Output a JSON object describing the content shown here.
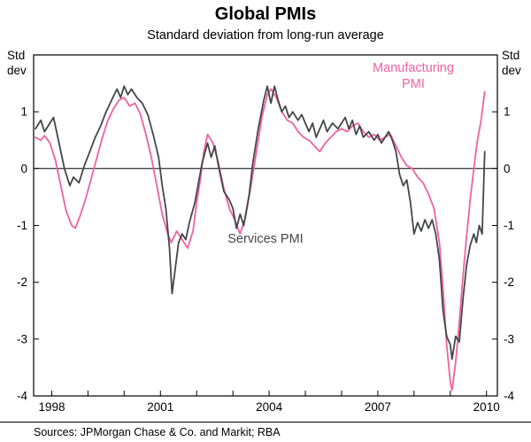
{
  "chart_data": {
    "type": "line",
    "title": "Global PMIs",
    "subtitle": "Standard deviation from long-run average",
    "unit_label_line1": "Std",
    "unit_label_line2": "dev",
    "x_domain": [
      1997.5,
      2010.3
    ],
    "y_domain": [
      -4,
      2
    ],
    "y_ticks": [
      1,
      0,
      -1,
      -2,
      -3,
      -4
    ],
    "x_minor_tick_years": [
      1998,
      1999,
      2000,
      2001,
      2002,
      2003,
      2004,
      2005,
      2006,
      2007,
      2008,
      2009,
      2010
    ],
    "x_labeled_ticks": [
      1998,
      2001,
      2004,
      2007,
      2010
    ],
    "zero_line": true,
    "grid": false,
    "legend_position": "annotated-on-chart",
    "series": [
      {
        "name": "Manufacturing PMI",
        "color": "#f0619f",
        "points": [
          [
            1997.55,
            0.55
          ],
          [
            1997.7,
            0.5
          ],
          [
            1997.8,
            0.58
          ],
          [
            1997.95,
            0.45
          ],
          [
            1998.1,
            0.15
          ],
          [
            1998.25,
            -0.3
          ],
          [
            1998.4,
            -0.75
          ],
          [
            1998.55,
            -1.0
          ],
          [
            1998.65,
            -1.05
          ],
          [
            1998.8,
            -0.8
          ],
          [
            1998.95,
            -0.5
          ],
          [
            1999.1,
            -0.15
          ],
          [
            1999.25,
            0.2
          ],
          [
            1999.4,
            0.55
          ],
          [
            1999.55,
            0.85
          ],
          [
            1999.7,
            1.05
          ],
          [
            1999.85,
            1.2
          ],
          [
            2000.0,
            1.25
          ],
          [
            2000.15,
            1.1
          ],
          [
            2000.3,
            1.15
          ],
          [
            2000.45,
            0.95
          ],
          [
            2000.6,
            0.6
          ],
          [
            2000.75,
            0.2
          ],
          [
            2000.9,
            -0.3
          ],
          [
            2001.05,
            -0.8
          ],
          [
            2001.2,
            -1.15
          ],
          [
            2001.3,
            -1.3
          ],
          [
            2001.45,
            -1.1
          ],
          [
            2001.6,
            -1.25
          ],
          [
            2001.75,
            -1.4
          ],
          [
            2001.9,
            -1.1
          ],
          [
            2002.0,
            -0.6
          ],
          [
            2002.1,
            -0.2
          ],
          [
            2002.2,
            0.3
          ],
          [
            2002.3,
            0.6
          ],
          [
            2002.45,
            0.45
          ],
          [
            2002.6,
            0.1
          ],
          [
            2002.75,
            -0.35
          ],
          [
            2002.9,
            -0.7
          ],
          [
            2003.05,
            -0.9
          ],
          [
            2003.2,
            -1.15
          ],
          [
            2003.35,
            -0.85
          ],
          [
            2003.5,
            -0.3
          ],
          [
            2003.65,
            0.3
          ],
          [
            2003.8,
            0.9
          ],
          [
            2003.95,
            1.3
          ],
          [
            2004.05,
            1.4
          ],
          [
            2004.2,
            1.25
          ],
          [
            2004.35,
            1.0
          ],
          [
            2004.5,
            0.85
          ],
          [
            2004.65,
            0.8
          ],
          [
            2004.8,
            0.65
          ],
          [
            2004.95,
            0.55
          ],
          [
            2005.1,
            0.5
          ],
          [
            2005.25,
            0.4
          ],
          [
            2005.4,
            0.3
          ],
          [
            2005.55,
            0.45
          ],
          [
            2005.7,
            0.55
          ],
          [
            2005.85,
            0.65
          ],
          [
            2006.0,
            0.7
          ],
          [
            2006.15,
            0.65
          ],
          [
            2006.3,
            0.75
          ],
          [
            2006.45,
            0.8
          ],
          [
            2006.6,
            0.65
          ],
          [
            2006.75,
            0.55
          ],
          [
            2006.9,
            0.6
          ],
          [
            2007.05,
            0.5
          ],
          [
            2007.2,
            0.55
          ],
          [
            2007.35,
            0.6
          ],
          [
            2007.5,
            0.4
          ],
          [
            2007.65,
            0.2
          ],
          [
            2007.8,
            0.05
          ],
          [
            2007.95,
            0.0
          ],
          [
            2008.1,
            -0.15
          ],
          [
            2008.25,
            -0.25
          ],
          [
            2008.4,
            -0.45
          ],
          [
            2008.55,
            -0.7
          ],
          [
            2008.7,
            -1.3
          ],
          [
            2008.8,
            -2.1
          ],
          [
            2008.9,
            -3.1
          ],
          [
            2009.0,
            -3.75
          ],
          [
            2009.05,
            -3.9
          ],
          [
            2009.15,
            -3.4
          ],
          [
            2009.25,
            -2.7
          ],
          [
            2009.35,
            -1.9
          ],
          [
            2009.45,
            -1.2
          ],
          [
            2009.55,
            -0.55
          ],
          [
            2009.65,
            0.0
          ],
          [
            2009.75,
            0.5
          ],
          [
            2009.85,
            0.85
          ],
          [
            2009.95,
            1.35
          ]
        ]
      },
      {
        "name": "Services PMI",
        "color": "#44464b",
        "points": [
          [
            1997.55,
            0.7
          ],
          [
            1997.7,
            0.85
          ],
          [
            1997.8,
            0.65
          ],
          [
            1997.95,
            0.8
          ],
          [
            1998.05,
            0.9
          ],
          [
            1998.2,
            0.45
          ],
          [
            1998.35,
            0.0
          ],
          [
            1998.5,
            -0.3
          ],
          [
            1998.6,
            -0.15
          ],
          [
            1998.75,
            -0.25
          ],
          [
            1998.9,
            0.05
          ],
          [
            1999.05,
            0.3
          ],
          [
            1999.2,
            0.55
          ],
          [
            1999.35,
            0.75
          ],
          [
            1999.5,
            1.0
          ],
          [
            1999.65,
            1.2
          ],
          [
            1999.8,
            1.4
          ],
          [
            1999.9,
            1.25
          ],
          [
            2000.0,
            1.45
          ],
          [
            2000.1,
            1.3
          ],
          [
            2000.2,
            1.4
          ],
          [
            2000.35,
            1.25
          ],
          [
            2000.5,
            1.15
          ],
          [
            2000.65,
            0.95
          ],
          [
            2000.8,
            0.6
          ],
          [
            2000.95,
            0.2
          ],
          [
            2001.05,
            -0.3
          ],
          [
            2001.15,
            -0.7
          ],
          [
            2001.25,
            -1.4
          ],
          [
            2001.32,
            -2.2
          ],
          [
            2001.4,
            -1.8
          ],
          [
            2001.5,
            -1.3
          ],
          [
            2001.6,
            -1.15
          ],
          [
            2001.7,
            -1.25
          ],
          [
            2001.8,
            -0.95
          ],
          [
            2001.95,
            -0.6
          ],
          [
            2002.05,
            -0.25
          ],
          [
            2002.15,
            0.1
          ],
          [
            2002.3,
            0.45
          ],
          [
            2002.4,
            0.2
          ],
          [
            2002.5,
            0.4
          ],
          [
            2002.6,
            0.05
          ],
          [
            2002.75,
            -0.4
          ],
          [
            2002.9,
            -0.55
          ],
          [
            2003.0,
            -0.7
          ],
          [
            2003.1,
            -1.05
          ],
          [
            2003.2,
            -0.8
          ],
          [
            2003.3,
            -1.0
          ],
          [
            2003.45,
            -0.45
          ],
          [
            2003.55,
            0.1
          ],
          [
            2003.7,
            0.7
          ],
          [
            2003.85,
            1.2
          ],
          [
            2003.95,
            1.45
          ],
          [
            2004.05,
            1.15
          ],
          [
            2004.15,
            1.45
          ],
          [
            2004.25,
            1.2
          ],
          [
            2004.35,
            1.0
          ],
          [
            2004.45,
            1.1
          ],
          [
            2004.55,
            0.9
          ],
          [
            2004.65,
            1.0
          ],
          [
            2004.8,
            0.85
          ],
          [
            2004.9,
            0.95
          ],
          [
            2005.0,
            0.8
          ],
          [
            2005.1,
            0.65
          ],
          [
            2005.2,
            0.8
          ],
          [
            2005.3,
            0.55
          ],
          [
            2005.4,
            0.7
          ],
          [
            2005.5,
            0.85
          ],
          [
            2005.6,
            0.65
          ],
          [
            2005.75,
            0.8
          ],
          [
            2005.9,
            0.7
          ],
          [
            2006.0,
            0.8
          ],
          [
            2006.1,
            0.9
          ],
          [
            2006.2,
            0.7
          ],
          [
            2006.3,
            0.85
          ],
          [
            2006.4,
            0.6
          ],
          [
            2006.5,
            0.75
          ],
          [
            2006.6,
            0.55
          ],
          [
            2006.75,
            0.65
          ],
          [
            2006.9,
            0.5
          ],
          [
            2007.0,
            0.6
          ],
          [
            2007.1,
            0.45
          ],
          [
            2007.2,
            0.55
          ],
          [
            2007.3,
            0.65
          ],
          [
            2007.4,
            0.5
          ],
          [
            2007.5,
            0.3
          ],
          [
            2007.6,
            -0.1
          ],
          [
            2007.7,
            -0.3
          ],
          [
            2007.8,
            -0.2
          ],
          [
            2007.9,
            -0.6
          ],
          [
            2008.0,
            -1.15
          ],
          [
            2008.1,
            -0.95
          ],
          [
            2008.2,
            -1.1
          ],
          [
            2008.3,
            -0.9
          ],
          [
            2008.4,
            -1.05
          ],
          [
            2008.5,
            -0.9
          ],
          [
            2008.6,
            -1.15
          ],
          [
            2008.7,
            -1.6
          ],
          [
            2008.8,
            -2.5
          ],
          [
            2008.9,
            -2.95
          ],
          [
            2009.0,
            -3.1
          ],
          [
            2009.05,
            -3.35
          ],
          [
            2009.15,
            -2.95
          ],
          [
            2009.25,
            -3.05
          ],
          [
            2009.35,
            -2.3
          ],
          [
            2009.45,
            -1.7
          ],
          [
            2009.55,
            -1.35
          ],
          [
            2009.65,
            -1.15
          ],
          [
            2009.72,
            -1.3
          ],
          [
            2009.8,
            -1.0
          ],
          [
            2009.88,
            -1.15
          ],
          [
            2009.95,
            0.3
          ]
        ]
      }
    ]
  },
  "annotations": {
    "manufacturing_line1": "Manufacturing",
    "manufacturing_line2": "PMI",
    "services": "Services PMI"
  },
  "footer": {
    "sources": "Sources: JPMorgan Chase & Co. and Markit; RBA"
  }
}
